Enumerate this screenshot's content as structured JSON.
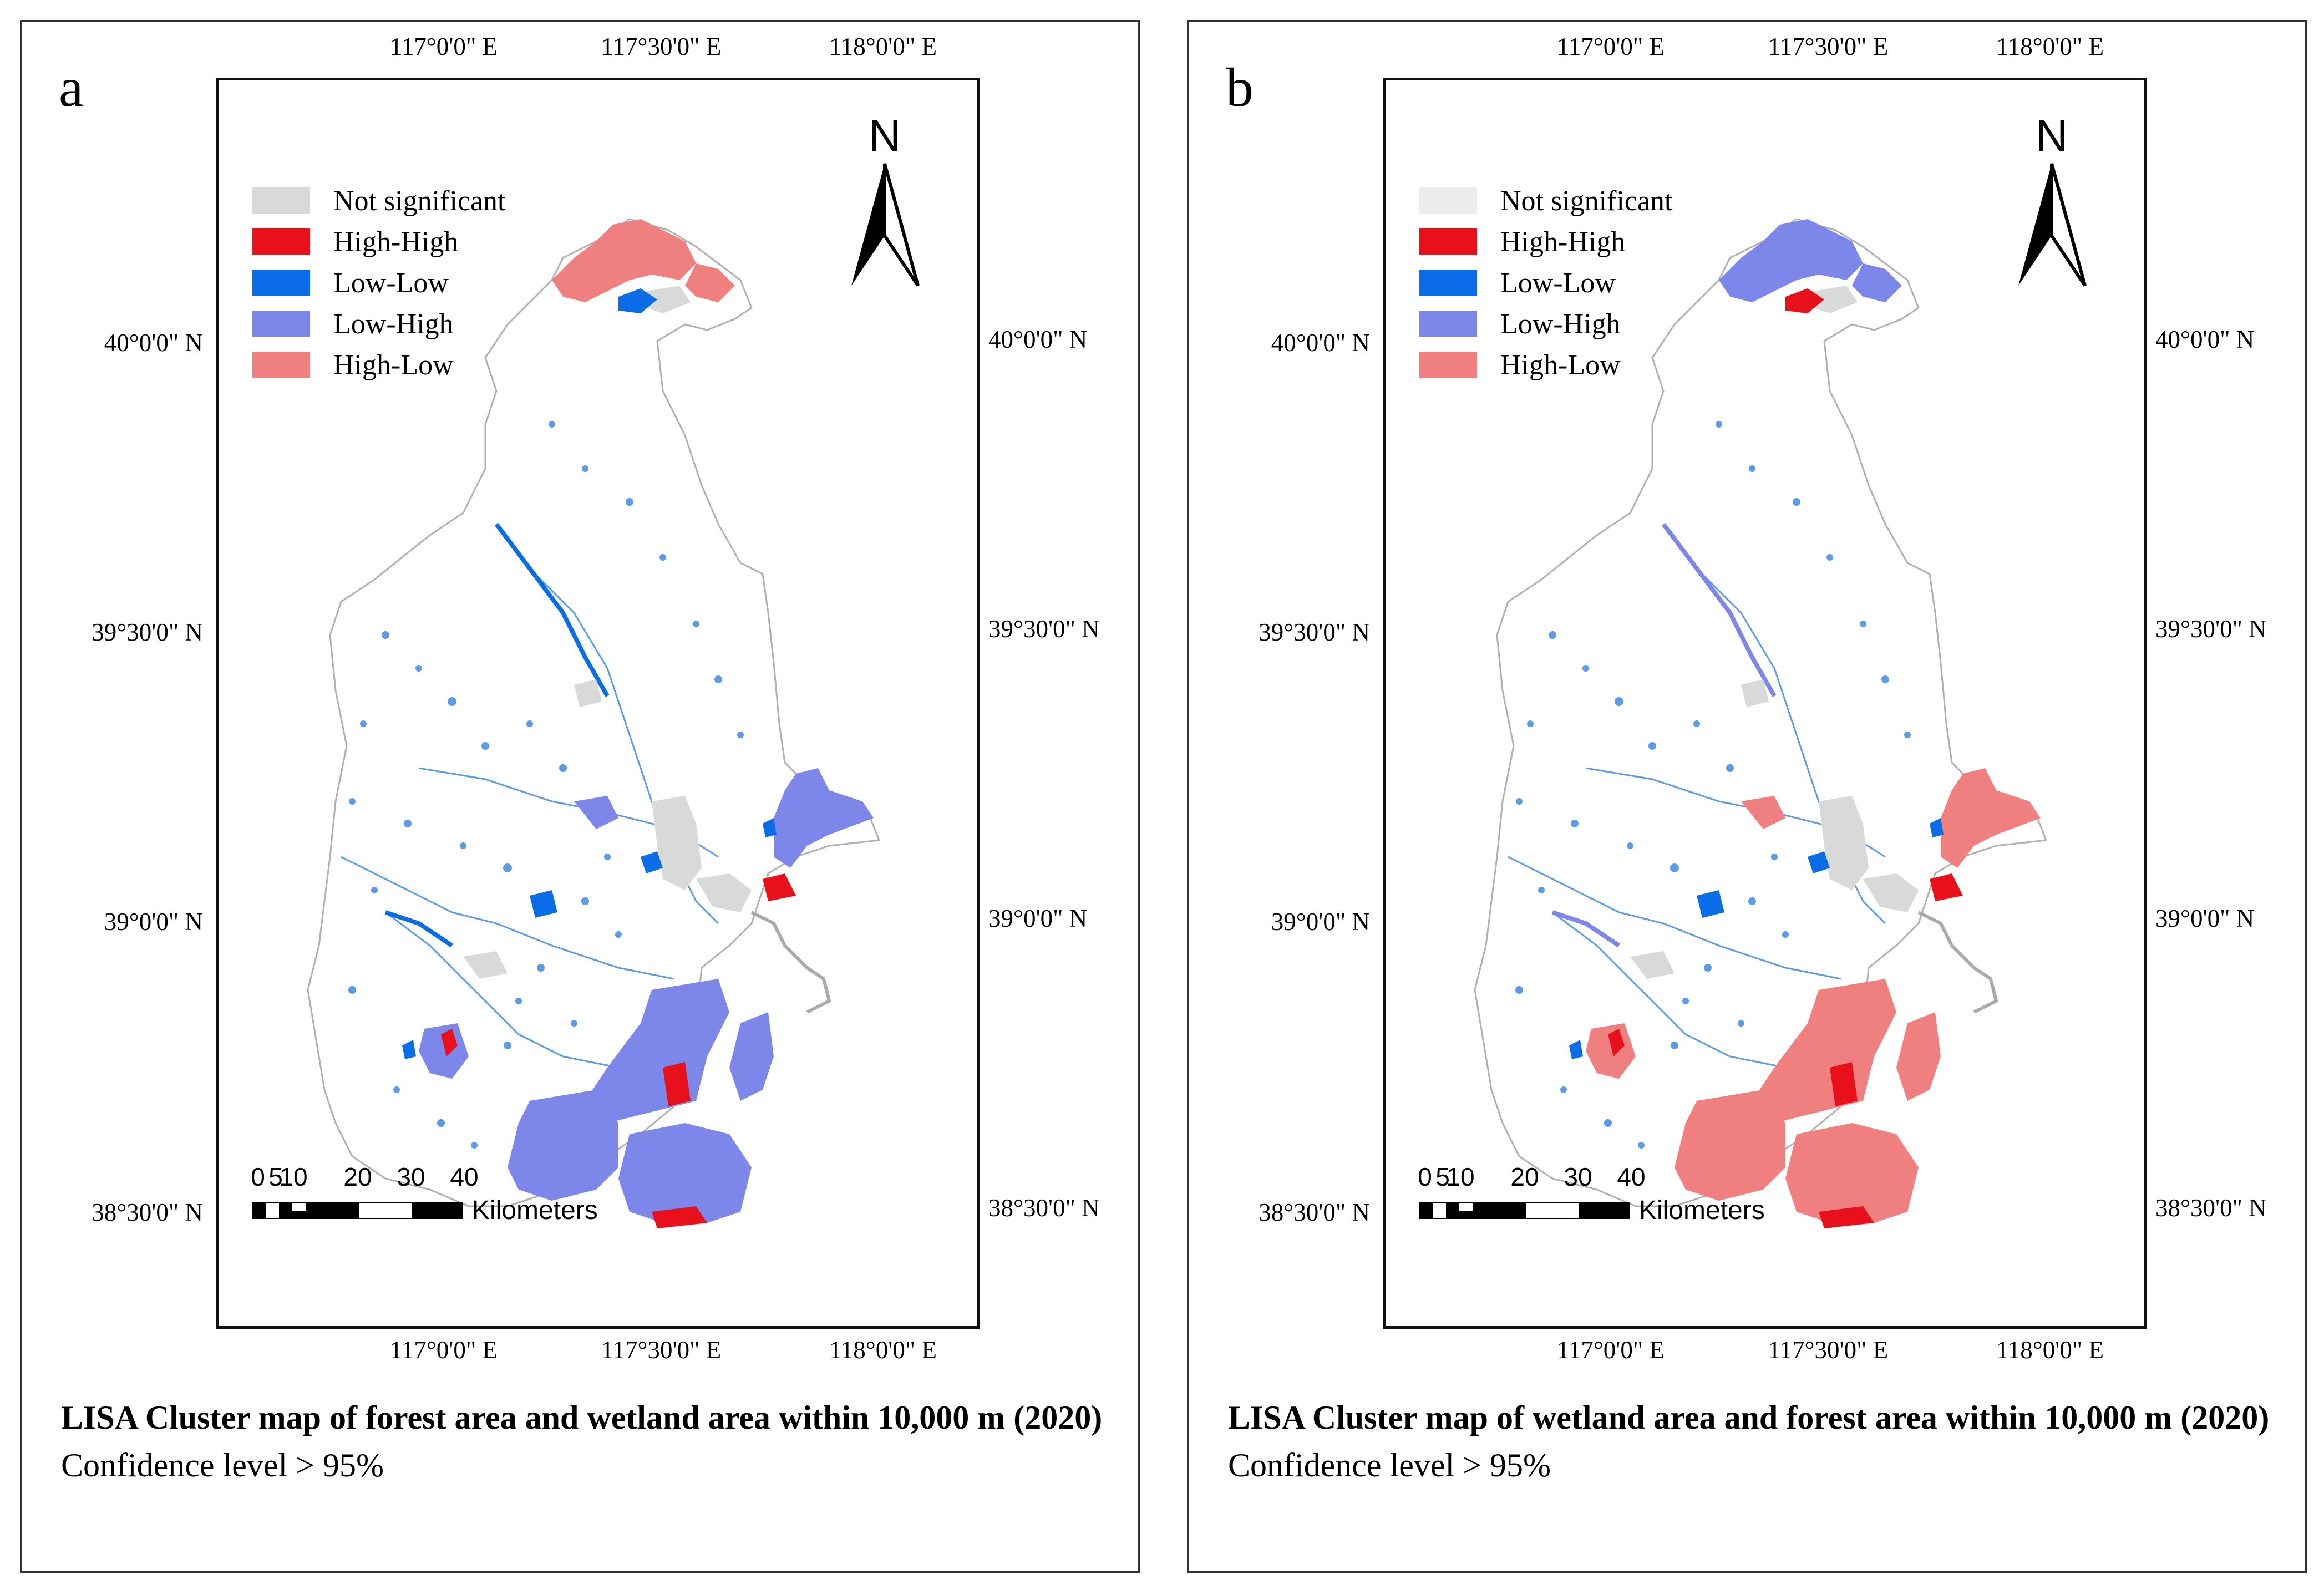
{
  "panels": [
    {
      "letter": "a",
      "top_lon_labels": [
        "117°0'0\" E",
        "117°30'0\" E",
        "118°0'0\" E"
      ],
      "bottom_lon_labels": [
        "117°0'0\" E",
        "117°30'0\" E",
        "118°0'0\" E"
      ],
      "left_lat_labels": [
        "40°0'0\" N",
        "39°30'0\" N",
        "39°0'0\" N",
        "38°30'0\" N"
      ],
      "right_lat_labels": [
        "40°0'0\" N",
        "39°30'0\" N",
        "39°0'0\" N",
        "38°30'0\" N"
      ],
      "legend": [
        {
          "label": "Not significant",
          "color": "#d9d9d9"
        },
        {
          "label": "High-High",
          "color": "#e8101a"
        },
        {
          "label": "Low-Low",
          "color": "#0a6ce6"
        },
        {
          "label": "Low-High",
          "color": "#7d87ea"
        },
        {
          "label": "High-Low",
          "color": "#f08080"
        }
      ],
      "north_label": "N",
      "scale": {
        "labels": [
          "0",
          "5",
          "10",
          "20",
          "30",
          "40"
        ],
        "unit": "Kilometers"
      },
      "caption_title": "LISA Cluster map of forest area and wetland area within 10,000 m (2020)",
      "caption_sub": "Confidence  level > 95%",
      "palette": {
        "boundary": "#b0b0b0",
        "fill": "#ffffff",
        "water": "#5b9be8",
        "coastal_main": "#7d87ea",
        "north_cluster": "#f08080",
        "hh": "#e8101a",
        "ll": "#0a6ce6",
        "ns": "#d9d9d9"
      }
    },
    {
      "letter": "b",
      "top_lon_labels": [
        "117°0'0\" E",
        "117°30'0\" E",
        "118°0'0\" E"
      ],
      "bottom_lon_labels": [
        "117°0'0\" E",
        "117°30'0\" E",
        "118°0'0\" E"
      ],
      "left_lat_labels": [
        "40°0'0\" N",
        "39°30'0\" N",
        "39°0'0\" N",
        "38°30'0\" N"
      ],
      "right_lat_labels": [
        "40°0'0\" N",
        "39°30'0\" N",
        "39°0'0\" N",
        "38°30'0\" N"
      ],
      "legend": [
        {
          "label": "Not significant",
          "color": "#ececec"
        },
        {
          "label": "High-High",
          "color": "#e8101a"
        },
        {
          "label": "Low-Low",
          "color": "#0a6ce6"
        },
        {
          "label": "Low-High",
          "color": "#7d87ea"
        },
        {
          "label": "High-Low",
          "color": "#f08080"
        }
      ],
      "north_label": "N",
      "scale": {
        "labels": [
          "0",
          "5",
          "10",
          "20",
          "30",
          "40"
        ],
        "unit": "Kilometers"
      },
      "caption_title": "LISA Cluster map of wetland area and forest area within 10,000 m (2020)",
      "caption_sub": "Confidence  level > 95%",
      "palette": {
        "boundary": "#b0b0b0",
        "fill": "#ffffff",
        "water": "#5b9be8",
        "coastal_main": "#f08080",
        "north_cluster": "#7d87ea",
        "hh": "#e8101a",
        "ll": "#0a6ce6",
        "ns": "#d9d9d9"
      }
    }
  ]
}
